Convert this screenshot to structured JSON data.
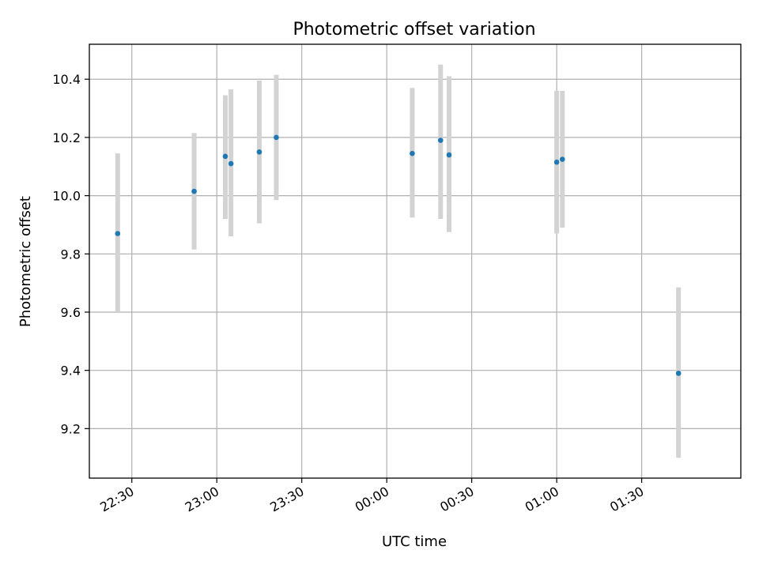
{
  "chart_data": {
    "type": "scatter",
    "title": "Photometric offset variation",
    "xlabel": "UTC time",
    "ylabel": "Photometric offset",
    "x_tick_labels": [
      "22:30",
      "23:00",
      "23:30",
      "00:00",
      "00:30",
      "01:00",
      "01:30"
    ],
    "y_tick_labels": [
      "9.2",
      "9.4",
      "9.6",
      "9.8",
      "10.0",
      "10.2",
      "10.4"
    ],
    "y_ticks": [
      9.2,
      9.4,
      9.6,
      9.8,
      10.0,
      10.2,
      10.4
    ],
    "ylim": [
      9.03,
      10.52
    ],
    "grid": true,
    "marker_color": "#1f77b4",
    "errorbar_color": "#d3d3d3",
    "series": [
      {
        "points": [
          {
            "time": "22:25",
            "value": 9.87,
            "err_low": 9.6,
            "err_high": 10.145
          },
          {
            "time": "22:52",
            "value": 10.015,
            "err_low": 9.815,
            "err_high": 10.215
          },
          {
            "time": "23:03",
            "value": 10.135,
            "err_low": 9.92,
            "err_high": 10.345
          },
          {
            "time": "23:05",
            "value": 10.11,
            "err_low": 9.86,
            "err_high": 10.365
          },
          {
            "time": "23:15",
            "value": 10.15,
            "err_low": 9.905,
            "err_high": 10.395
          },
          {
            "time": "23:21",
            "value": 10.2,
            "err_low": 9.985,
            "err_high": 10.415
          },
          {
            "time": "00:09",
            "value": 10.145,
            "err_low": 9.925,
            "err_high": 10.37
          },
          {
            "time": "00:19",
            "value": 10.19,
            "err_low": 9.92,
            "err_high": 10.45
          },
          {
            "time": "00:22",
            "value": 10.14,
            "err_low": 9.875,
            "err_high": 10.41
          },
          {
            "time": "01:00",
            "value": 10.115,
            "err_low": 9.87,
            "err_high": 10.36
          },
          {
            "time": "01:02",
            "value": 10.125,
            "err_low": 9.89,
            "err_high": 10.36
          },
          {
            "time": "01:43",
            "value": 9.39,
            "err_low": 9.1,
            "err_high": 9.685
          }
        ]
      }
    ]
  }
}
